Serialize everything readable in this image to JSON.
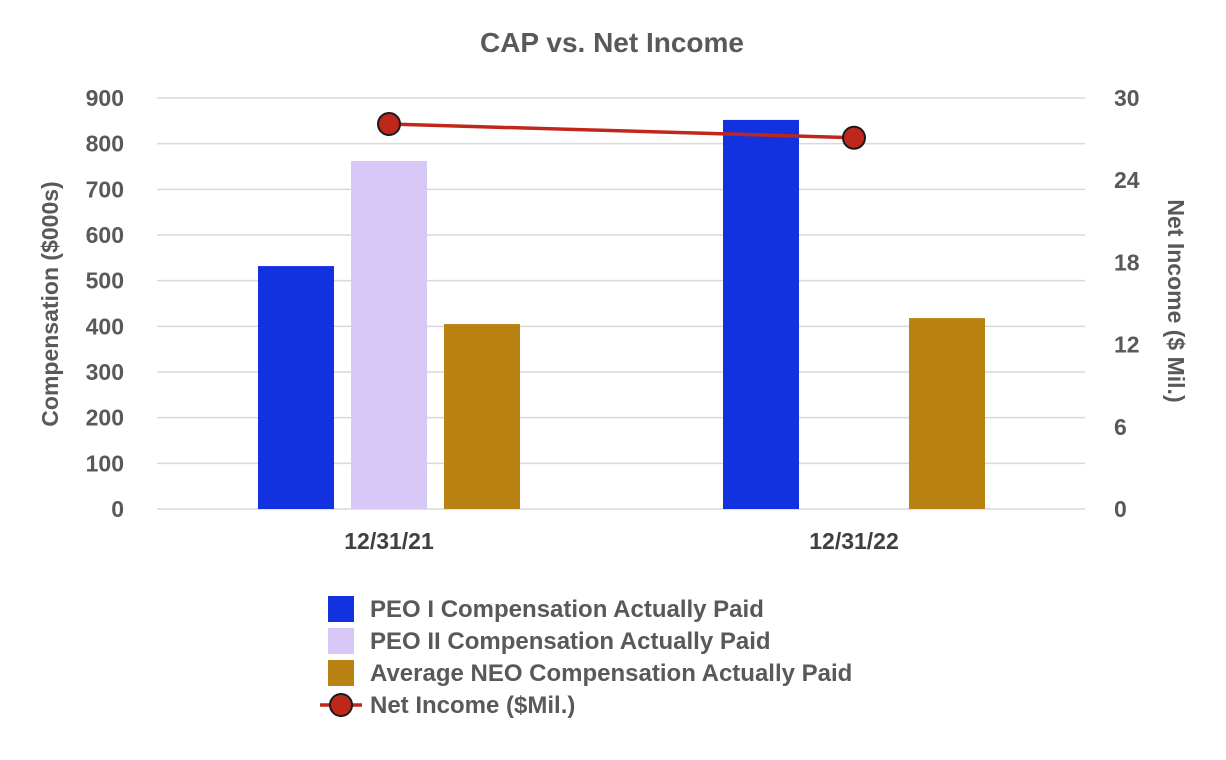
{
  "chart_data": {
    "type": "bar",
    "title": "CAP vs. Net Income",
    "categories": [
      "12/31/21",
      "12/31/22"
    ],
    "ylabel": "Compensation ($000s)",
    "ylim": [
      0,
      900
    ],
    "yticks": [
      "0",
      "100",
      "200",
      "300",
      "400",
      "500",
      "600",
      "700",
      "800",
      "900"
    ],
    "y2label": "Net Income ($ Mil.)",
    "y2lim": [
      0,
      30
    ],
    "y2ticks": [
      "0",
      "6",
      "12",
      "18",
      "24",
      "30"
    ],
    "grid": true,
    "legend_position": "bottom",
    "series": [
      {
        "name": "PEO I Compensation Actually Paid",
        "kind": "bar",
        "color": "#1232e0",
        "values": [
          532,
          852
        ]
      },
      {
        "name": "PEO II Compensation Actually Paid",
        "kind": "bar",
        "color": "#d8c8f7",
        "values": [
          762,
          null
        ]
      },
      {
        "name": "Average NEO Compensation Actually Paid",
        "kind": "bar",
        "color": "#b98213",
        "values": [
          405,
          418
        ]
      },
      {
        "name": "Net Income ($Mil.)",
        "kind": "line",
        "axis": "right",
        "color": "#c0271b",
        "values": [
          28.1,
          27.1
        ]
      }
    ]
  }
}
